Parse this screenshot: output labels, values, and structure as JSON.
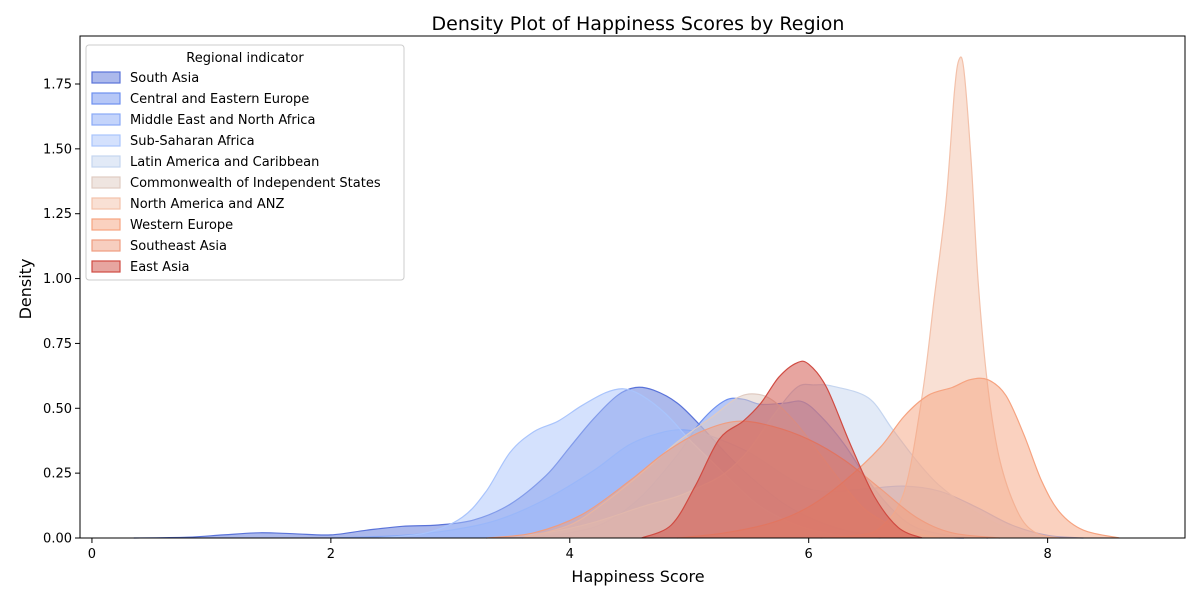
{
  "chart_data": {
    "type": "area",
    "title": "Density Plot of Happiness Scores by Region",
    "xlabel": "Happiness Score",
    "ylabel": "Density",
    "xlim": [
      -0.1,
      9.15
    ],
    "ylim": [
      0,
      1.935
    ],
    "xticks": [
      0,
      2,
      4,
      6,
      8
    ],
    "yticks": [
      0.0,
      0.25,
      0.5,
      0.75,
      1.0,
      1.25,
      1.5,
      1.75
    ],
    "ytick_labels": [
      "0.00",
      "0.25",
      "0.50",
      "0.75",
      "1.00",
      "1.25",
      "1.50",
      "1.75"
    ],
    "grid": false,
    "legend": {
      "title": "Regional indicator",
      "placement": "top-left"
    },
    "series": [
      {
        "name": "South Asia",
        "color": "#5a73d9",
        "points": [
          [
            0.35,
            0.0
          ],
          [
            0.8,
            0.003
          ],
          [
            1.1,
            0.012
          ],
          [
            1.4,
            0.02
          ],
          [
            1.7,
            0.016
          ],
          [
            2.0,
            0.012
          ],
          [
            2.3,
            0.03
          ],
          [
            2.6,
            0.045
          ],
          [
            2.9,
            0.05
          ],
          [
            3.2,
            0.07
          ],
          [
            3.5,
            0.13
          ],
          [
            3.8,
            0.24
          ],
          [
            4.0,
            0.35
          ],
          [
            4.2,
            0.46
          ],
          [
            4.4,
            0.55
          ],
          [
            4.55,
            0.58
          ],
          [
            4.7,
            0.57
          ],
          [
            4.9,
            0.52
          ],
          [
            5.1,
            0.43
          ],
          [
            5.3,
            0.33
          ],
          [
            5.5,
            0.24
          ],
          [
            5.8,
            0.13
          ],
          [
            6.1,
            0.06
          ],
          [
            6.4,
            0.02
          ],
          [
            6.8,
            0.005
          ],
          [
            7.3,
            0.0
          ]
        ]
      },
      {
        "name": "Central and Eastern Europe",
        "color": "#6d8ff0",
        "points": [
          [
            3.6,
            0.0
          ],
          [
            4.0,
            0.02
          ],
          [
            4.3,
            0.06
          ],
          [
            4.6,
            0.16
          ],
          [
            4.9,
            0.32
          ],
          [
            5.1,
            0.45
          ],
          [
            5.3,
            0.53
          ],
          [
            5.45,
            0.535
          ],
          [
            5.6,
            0.515
          ],
          [
            5.8,
            0.52
          ],
          [
            5.95,
            0.525
          ],
          [
            6.1,
            0.47
          ],
          [
            6.3,
            0.36
          ],
          [
            6.5,
            0.22
          ],
          [
            6.7,
            0.11
          ],
          [
            6.9,
            0.04
          ],
          [
            7.2,
            0.008
          ],
          [
            7.5,
            0.0
          ]
        ]
      },
      {
        "name": "Middle East and North Africa",
        "color": "#8aaaf7",
        "points": [
          [
            2.0,
            0.0
          ],
          [
            2.6,
            0.01
          ],
          [
            3.0,
            0.03
          ],
          [
            3.4,
            0.07
          ],
          [
            3.8,
            0.15
          ],
          [
            4.2,
            0.26
          ],
          [
            4.5,
            0.36
          ],
          [
            4.8,
            0.41
          ],
          [
            5.0,
            0.415
          ],
          [
            5.2,
            0.39
          ],
          [
            5.5,
            0.33
          ],
          [
            5.8,
            0.24
          ],
          [
            6.0,
            0.19
          ],
          [
            6.2,
            0.18
          ],
          [
            6.5,
            0.19
          ],
          [
            6.8,
            0.2
          ],
          [
            7.1,
            0.18
          ],
          [
            7.4,
            0.12
          ],
          [
            7.7,
            0.05
          ],
          [
            8.0,
            0.01
          ],
          [
            8.3,
            0.0
          ]
        ]
      },
      {
        "name": "Sub-Saharan Africa",
        "color": "#a9c4fc",
        "points": [
          [
            2.4,
            0.0
          ],
          [
            2.8,
            0.02
          ],
          [
            3.1,
            0.08
          ],
          [
            3.3,
            0.18
          ],
          [
            3.5,
            0.33
          ],
          [
            3.7,
            0.41
          ],
          [
            3.9,
            0.45
          ],
          [
            4.1,
            0.51
          ],
          [
            4.3,
            0.56
          ],
          [
            4.45,
            0.575
          ],
          [
            4.6,
            0.55
          ],
          [
            4.8,
            0.48
          ],
          [
            5.0,
            0.38
          ],
          [
            5.2,
            0.29
          ],
          [
            5.4,
            0.2
          ],
          [
            5.6,
            0.12
          ],
          [
            5.9,
            0.05
          ],
          [
            6.2,
            0.015
          ],
          [
            6.6,
            0.0
          ]
        ]
      },
      {
        "name": "Latin America and Caribbean",
        "color": "#c5d5ef",
        "points": [
          [
            3.3,
            0.0
          ],
          [
            3.8,
            0.02
          ],
          [
            4.2,
            0.06
          ],
          [
            4.6,
            0.12
          ],
          [
            4.9,
            0.16
          ],
          [
            5.1,
            0.2
          ],
          [
            5.3,
            0.25
          ],
          [
            5.5,
            0.34
          ],
          [
            5.7,
            0.47
          ],
          [
            5.9,
            0.58
          ],
          [
            6.05,
            0.59
          ],
          [
            6.2,
            0.585
          ],
          [
            6.5,
            0.54
          ],
          [
            6.7,
            0.42
          ],
          [
            6.9,
            0.3
          ],
          [
            7.1,
            0.2
          ],
          [
            7.4,
            0.1
          ],
          [
            7.7,
            0.03
          ],
          [
            8.0,
            0.0
          ]
        ]
      },
      {
        "name": "Commonwealth of Independent States",
        "color": "#e0cbc2",
        "points": [
          [
            3.6,
            0.0
          ],
          [
            4.0,
            0.05
          ],
          [
            4.3,
            0.14
          ],
          [
            4.6,
            0.25
          ],
          [
            4.9,
            0.37
          ],
          [
            5.2,
            0.47
          ],
          [
            5.4,
            0.54
          ],
          [
            5.55,
            0.555
          ],
          [
            5.7,
            0.53
          ],
          [
            5.9,
            0.44
          ],
          [
            6.1,
            0.32
          ],
          [
            6.3,
            0.2
          ],
          [
            6.5,
            0.1
          ],
          [
            6.8,
            0.03
          ],
          [
            7.1,
            0.0
          ]
        ]
      },
      {
        "name": "North America and ANZ",
        "color": "#f3c1aa",
        "points": [
          [
            6.1,
            0.0
          ],
          [
            6.4,
            0.01
          ],
          [
            6.6,
            0.04
          ],
          [
            6.8,
            0.18
          ],
          [
            6.95,
            0.55
          ],
          [
            7.05,
            0.92
          ],
          [
            7.15,
            1.3
          ],
          [
            7.22,
            1.72
          ],
          [
            7.26,
            1.845
          ],
          [
            7.3,
            1.8
          ],
          [
            7.36,
            1.45
          ],
          [
            7.42,
            0.98
          ],
          [
            7.5,
            0.58
          ],
          [
            7.6,
            0.3
          ],
          [
            7.75,
            0.1
          ],
          [
            7.9,
            0.02
          ],
          [
            8.1,
            0.0
          ]
        ]
      },
      {
        "name": "Western Europe",
        "color": "#f6a380",
        "points": [
          [
            4.9,
            0.0
          ],
          [
            5.3,
            0.02
          ],
          [
            5.7,
            0.06
          ],
          [
            6.0,
            0.12
          ],
          [
            6.3,
            0.22
          ],
          [
            6.6,
            0.35
          ],
          [
            6.8,
            0.47
          ],
          [
            7.0,
            0.55
          ],
          [
            7.2,
            0.58
          ],
          [
            7.35,
            0.61
          ],
          [
            7.5,
            0.61
          ],
          [
            7.65,
            0.55
          ],
          [
            7.8,
            0.4
          ],
          [
            7.95,
            0.22
          ],
          [
            8.1,
            0.1
          ],
          [
            8.3,
            0.03
          ],
          [
            8.6,
            0.0
          ]
        ]
      },
      {
        "name": "Southeast Asia",
        "color": "#f09d80",
        "points": [
          [
            3.3,
            0.0
          ],
          [
            3.7,
            0.02
          ],
          [
            4.1,
            0.09
          ],
          [
            4.5,
            0.22
          ],
          [
            4.8,
            0.33
          ],
          [
            5.1,
            0.41
          ],
          [
            5.4,
            0.45
          ],
          [
            5.7,
            0.43
          ],
          [
            6.0,
            0.38
          ],
          [
            6.3,
            0.3
          ],
          [
            6.6,
            0.19
          ],
          [
            6.9,
            0.08
          ],
          [
            7.2,
            0.02
          ],
          [
            7.6,
            0.0
          ]
        ]
      },
      {
        "name": "East Asia",
        "color": "#d04b42",
        "points": [
          [
            4.6,
            0.0
          ],
          [
            4.85,
            0.05
          ],
          [
            5.05,
            0.2
          ],
          [
            5.25,
            0.38
          ],
          [
            5.45,
            0.45
          ],
          [
            5.6,
            0.52
          ],
          [
            5.75,
            0.62
          ],
          [
            5.9,
            0.675
          ],
          [
            6.0,
            0.67
          ],
          [
            6.15,
            0.58
          ],
          [
            6.35,
            0.36
          ],
          [
            6.55,
            0.16
          ],
          [
            6.75,
            0.04
          ],
          [
            6.95,
            0.0
          ]
        ]
      }
    ]
  }
}
